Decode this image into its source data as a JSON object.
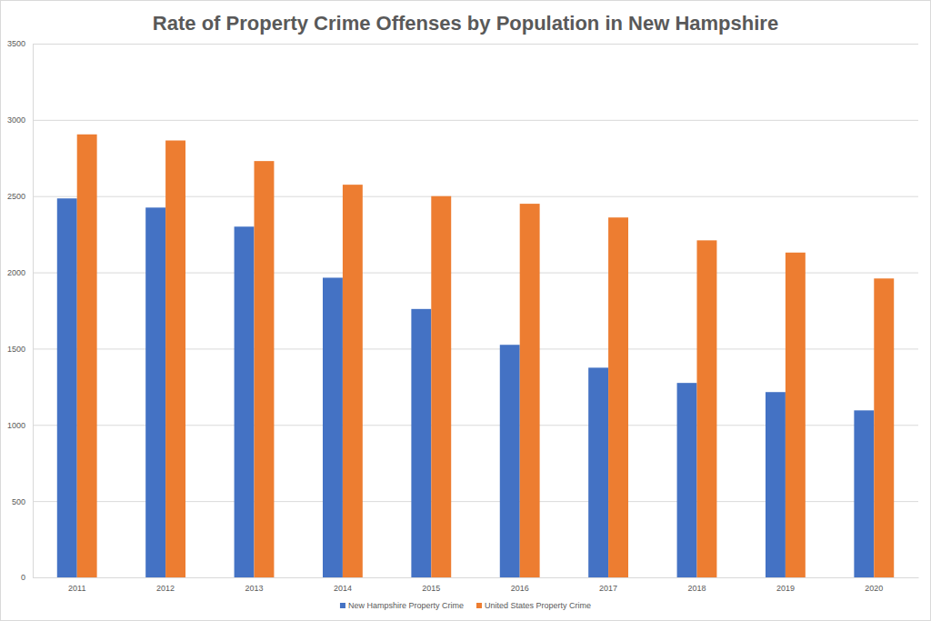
{
  "chart_data": {
    "type": "bar",
    "title": "Rate of Property Crime Offenses by Population in New Hampshire",
    "categories": [
      "2011",
      "2012",
      "2013",
      "2014",
      "2015",
      "2016",
      "2017",
      "2018",
      "2019",
      "2020"
    ],
    "series": [
      {
        "name": "New Hampshire Property Crime",
        "color": "#4472c4",
        "values": [
          2485,
          2425,
          2300,
          1965,
          1760,
          1525,
          1375,
          1275,
          1215,
          1095
        ]
      },
      {
        "name": "United States Property Crime",
        "color": "#ed7d31",
        "values": [
          2905,
          2865,
          2730,
          2575,
          2500,
          2450,
          2360,
          2210,
          2130,
          1960
        ]
      }
    ],
    "ylim": [
      0,
      3500
    ],
    "yticks": [
      0,
      500,
      1000,
      1500,
      2000,
      2500,
      3000,
      3500
    ],
    "grid": true,
    "legend": "bottom"
  }
}
